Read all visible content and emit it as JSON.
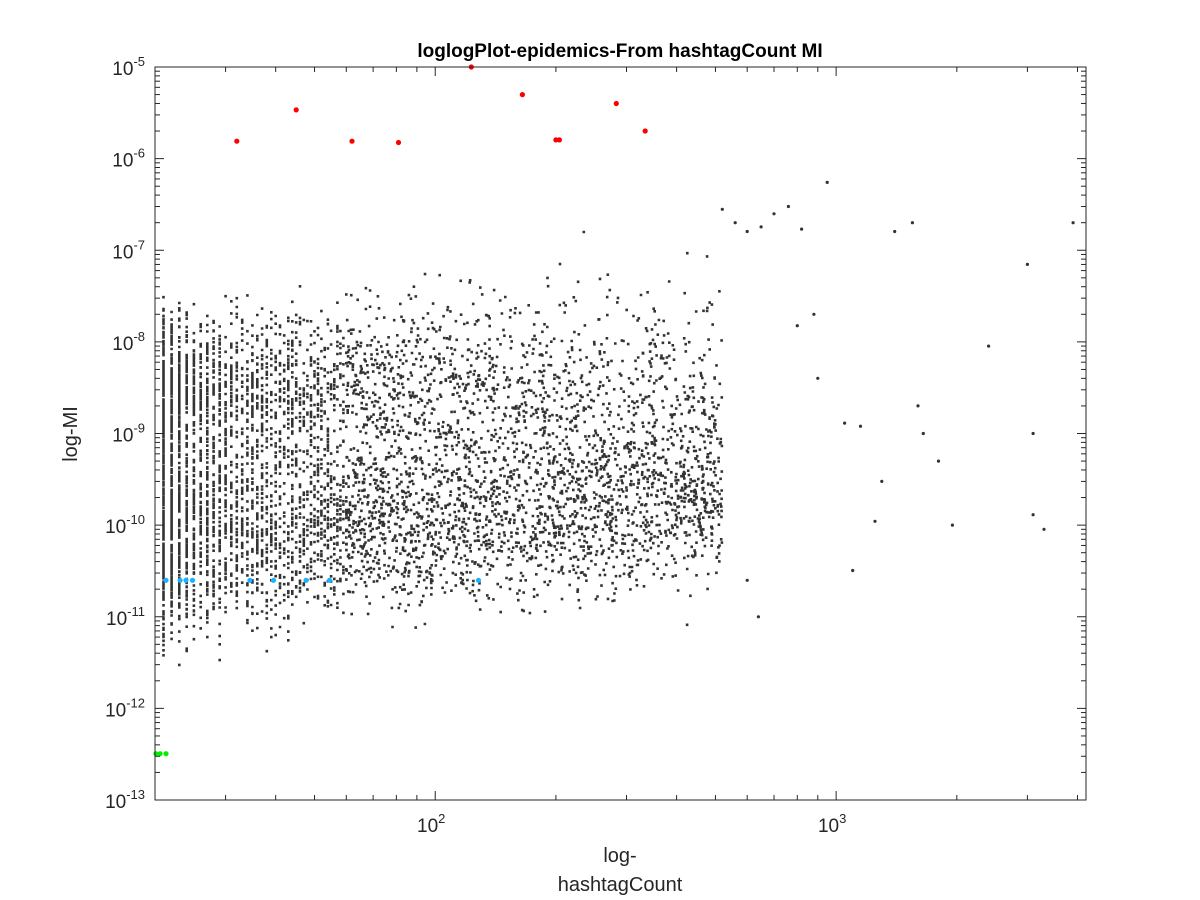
{
  "chart_data": {
    "type": "scatter",
    "title": "loglogPlot-epidemics-From hashtagCount MI",
    "xlabel_lines": [
      "log-",
      "hashtagCount"
    ],
    "ylabel": "log-MI",
    "xscale": "log",
    "yscale": "log",
    "xlim": [
      20,
      4200
    ],
    "ylim": [
      1e-13,
      1e-05
    ],
    "grid": false,
    "x_ticks": [
      {
        "value": 100,
        "base": "10",
        "exp": "2"
      },
      {
        "value": 1000,
        "base": "10",
        "exp": "3"
      }
    ],
    "y_ticks": [
      {
        "value": 1e-13,
        "base": "10",
        "exp": "-13"
      },
      {
        "value": 1e-12,
        "base": "10",
        "exp": "-12"
      },
      {
        "value": 1e-11,
        "base": "10",
        "exp": "-11"
      },
      {
        "value": 1e-10,
        "base": "10",
        "exp": "-10"
      },
      {
        "value": 1e-09,
        "base": "10",
        "exp": "-9"
      },
      {
        "value": 1e-08,
        "base": "10",
        "exp": "-8"
      },
      {
        "value": 1e-07,
        "base": "10",
        "exp": "-7"
      },
      {
        "value": 1e-06,
        "base": "10",
        "exp": "-6"
      },
      {
        "value": 1e-05,
        "base": "10",
        "exp": "-5"
      }
    ],
    "colors": {
      "background_series": "#333333",
      "high_series": "#ff0000",
      "mid_series": "#1ab2ff",
      "low_series": "#00ee00"
    },
    "series": [
      {
        "role": "background_dense",
        "color": "#333333",
        "x": [
          21,
          22,
          23,
          24,
          25,
          26,
          27,
          28,
          30,
          32,
          34,
          36,
          38,
          40,
          43,
          46,
          50,
          55,
          60,
          66,
          73,
          80,
          90,
          100,
          115,
          130,
          150,
          170,
          200,
          230,
          260,
          300,
          350,
          400,
          450
        ],
        "upper_band_y": [
          3.5e-09,
          3.5e-09,
          3.5e-09,
          3.4e-09,
          3.4e-09,
          3.4e-09,
          3.3e-09,
          3.3e-09,
          3.3e-09,
          3.2e-09,
          3.2e-09,
          3.2e-09,
          3.2e-09,
          3.1e-09,
          3.1e-09,
          3.1e-09,
          3e-09,
          3e-09,
          3e-09,
          3e-09,
          2.9e-09,
          2.9e-09,
          2.9e-09,
          2.8e-09,
          2.8e-09,
          2.7e-09,
          2.6e-09,
          2.5e-09,
          2.4e-09,
          2.3e-09,
          2.2e-09,
          2e-09,
          1.8e-09,
          1.6e-09,
          1.4e-09
        ],
        "lower_band_y": [
          1e-10,
          1e-10,
          1e-10,
          1e-10,
          1e-10,
          1e-10,
          1e-10,
          1e-10,
          1e-10,
          1e-10,
          1e-10,
          1e-10,
          1e-10,
          1e-10,
          1e-10,
          1e-10,
          1e-10,
          1e-10,
          1e-10,
          1e-10,
          1e-10,
          1e-10,
          1e-10,
          1e-10,
          1.1e-10,
          1.1e-10,
          1.2e-10,
          1.2e-10,
          1.3e-10,
          1.4e-10,
          1.5e-10,
          1.6e-10,
          1.7e-10,
          1.8e-10,
          1.9e-10
        ]
      },
      {
        "role": "background_sparse",
        "color": "#333333",
        "x": [
          520,
          560,
          600,
          650,
          700,
          760,
          820,
          880,
          950,
          1050,
          1150,
          1250,
          1400,
          1550,
          1650,
          1800,
          1950,
          2400,
          3000,
          3100,
          3300,
          3900,
          1100,
          1600,
          800,
          1300,
          600,
          3100,
          640,
          900
        ],
        "y": [
          2.8e-07,
          2e-07,
          1.6e-07,
          1.8e-07,
          2.5e-07,
          3e-07,
          1.7e-07,
          2e-08,
          5.5e-07,
          1.3e-09,
          1.2e-09,
          1.1e-10,
          1.6e-07,
          2e-07,
          1e-09,
          5e-10,
          1e-10,
          9e-09,
          7e-08,
          1e-09,
          9e-11,
          2e-07,
          3.2e-11,
          2e-09,
          1.5e-08,
          3e-10,
          2.5e-11,
          1.3e-10,
          1e-11,
          4e-09
        ]
      },
      {
        "role": "high",
        "color": "#ff0000",
        "x": [
          32,
          45,
          62,
          81,
          123,
          165,
          200,
          204,
          283,
          334
        ],
        "y": [
          1.55e-06,
          3.4e-06,
          1.55e-06,
          1.5e-06,
          1e-05,
          5e-06,
          1.6e-06,
          1.6e-06,
          4e-06,
          2e-06
        ]
      },
      {
        "role": "mid",
        "color": "#1ab2ff",
        "x": [
          21.3,
          23.1,
          23.9,
          24.8,
          34.5,
          39.5,
          47.6,
          54.5,
          128.2
        ],
        "y": [
          2.5e-11,
          2.5e-11,
          2.5e-11,
          2.5e-11,
          2.5e-11,
          2.5e-11,
          2.5e-11,
          2.5e-11,
          2.5e-11
        ]
      },
      {
        "role": "low",
        "color": "#00ee00",
        "x": [
          20.1,
          20.6,
          21.3
        ],
        "y": [
          3.2e-13,
          3.2e-13,
          3.2e-13
        ]
      }
    ]
  }
}
